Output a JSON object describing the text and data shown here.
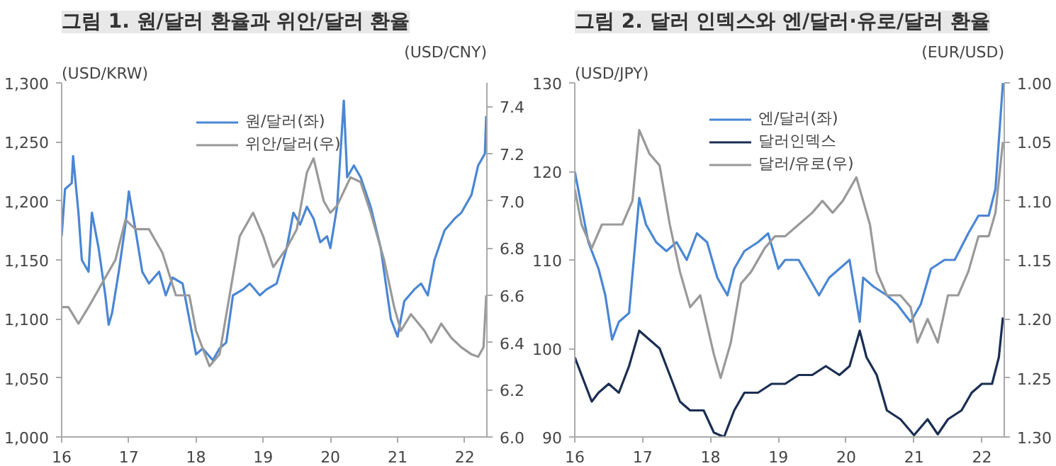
{
  "chart_data": [
    {
      "type": "line",
      "title": "그림 1. 원/달러 환율과 위안/달러 환율",
      "ylabel": "(USD/KRW)",
      "y2label": "(USD/CNY)",
      "legend": "top",
      "grid": false,
      "xlim": [
        2016,
        2022.33
      ],
      "xticks": [
        {
          "value": 2016,
          "label": "16"
        },
        {
          "value": 2017,
          "label": "17"
        },
        {
          "value": 2018,
          "label": "18"
        },
        {
          "value": 2019,
          "label": "19"
        },
        {
          "value": 2020,
          "label": "20"
        },
        {
          "value": 2021,
          "label": "21"
        },
        {
          "value": 2022,
          "label": "22"
        }
      ],
      "ylim": [
        1000,
        1300
      ],
      "yticks": [
        {
          "value": 1000,
          "label": "1,000"
        },
        {
          "value": 1050,
          "label": "1,050"
        },
        {
          "value": 1100,
          "label": "1,100"
        },
        {
          "value": 1150,
          "label": "1,150"
        },
        {
          "value": 1200,
          "label": "1,200"
        },
        {
          "value": 1250,
          "label": "1,250"
        },
        {
          "value": 1300,
          "label": "1,300"
        }
      ],
      "y2lim": [
        6.0,
        7.5
      ],
      "y2ticks": [
        {
          "value": 6.0,
          "label": "6.0"
        },
        {
          "value": 6.2,
          "label": "6.2"
        },
        {
          "value": 6.4,
          "label": "6.4"
        },
        {
          "value": 6.6,
          "label": "6.6"
        },
        {
          "value": 6.8,
          "label": "6.8"
        },
        {
          "value": 7.0,
          "label": "7.0"
        },
        {
          "value": 7.2,
          "label": "7.2"
        },
        {
          "value": 7.4,
          "label": "7.4"
        }
      ],
      "series": [
        {
          "name": "원/달러(좌)",
          "color": "#4a86d4",
          "x": [
            2016.0,
            2016.05,
            2016.15,
            2016.17,
            2016.25,
            2016.3,
            2016.4,
            2016.45,
            2016.55,
            2016.65,
            2016.7,
            2016.75,
            2016.85,
            2016.95,
            2017.0,
            2017.1,
            2017.2,
            2017.3,
            2017.45,
            2017.55,
            2017.65,
            2017.8,
            2017.9,
            2018.0,
            2018.1,
            2018.25,
            2018.35,
            2018.45,
            2018.55,
            2018.7,
            2018.8,
            2018.95,
            2019.05,
            2019.2,
            2019.35,
            2019.45,
            2019.55,
            2019.65,
            2019.75,
            2019.85,
            2019.95,
            2020.0,
            2020.1,
            2020.2,
            2020.25,
            2020.35,
            2020.45,
            2020.6,
            2020.75,
            2020.9,
            2021.0,
            2021.1,
            2021.25,
            2021.35,
            2021.45,
            2021.55,
            2021.7,
            2021.85,
            2021.95,
            2022.1,
            2022.2,
            2022.3,
            2022.32
          ],
          "values": [
            1170,
            1210,
            1215,
            1238,
            1190,
            1150,
            1140,
            1190,
            1160,
            1120,
            1095,
            1105,
            1140,
            1180,
            1208,
            1175,
            1140,
            1130,
            1140,
            1120,
            1135,
            1130,
            1100,
            1070,
            1075,
            1065,
            1075,
            1080,
            1120,
            1125,
            1130,
            1120,
            1125,
            1130,
            1160,
            1190,
            1180,
            1195,
            1185,
            1165,
            1170,
            1160,
            1195,
            1285,
            1220,
            1230,
            1220,
            1195,
            1160,
            1100,
            1085,
            1115,
            1125,
            1130,
            1120,
            1150,
            1175,
            1185,
            1190,
            1205,
            1230,
            1240,
            1272
          ]
        },
        {
          "name": "위안/달러(우)",
          "color": "#999999",
          "axis": "y2",
          "x": [
            2016.0,
            2016.1,
            2016.25,
            2016.4,
            2016.6,
            2016.8,
            2016.95,
            2017.1,
            2017.3,
            2017.5,
            2017.7,
            2017.9,
            2018.0,
            2018.2,
            2018.35,
            2018.5,
            2018.65,
            2018.85,
            2019.0,
            2019.15,
            2019.35,
            2019.5,
            2019.65,
            2019.75,
            2019.9,
            2020.0,
            2020.1,
            2020.3,
            2020.45,
            2020.6,
            2020.8,
            2020.95,
            2021.05,
            2021.2,
            2021.4,
            2021.5,
            2021.65,
            2021.8,
            2021.95,
            2022.1,
            2022.2,
            2022.28,
            2022.32
          ],
          "values": [
            6.55,
            6.55,
            6.48,
            6.55,
            6.65,
            6.75,
            6.92,
            6.88,
            6.88,
            6.78,
            6.6,
            6.6,
            6.45,
            6.3,
            6.35,
            6.6,
            6.85,
            6.95,
            6.85,
            6.72,
            6.8,
            6.88,
            7.12,
            7.18,
            7.0,
            6.95,
            6.98,
            7.1,
            7.08,
            6.95,
            6.75,
            6.55,
            6.45,
            6.52,
            6.45,
            6.4,
            6.48,
            6.42,
            6.38,
            6.35,
            6.34,
            6.38,
            6.6
          ]
        }
      ]
    },
    {
      "type": "line",
      "title": "그림 2. 달러 인덱스와 엔/달러·유로/달러 환율",
      "ylabel": "(USD/JPY)",
      "y2label": "(EUR/USD)",
      "legend": "top",
      "grid": false,
      "xlim": [
        2016,
        2022.33
      ],
      "xticks": [
        {
          "value": 2016,
          "label": "16"
        },
        {
          "value": 2017,
          "label": "17"
        },
        {
          "value": 2018,
          "label": "18"
        },
        {
          "value": 2019,
          "label": "19"
        },
        {
          "value": 2020,
          "label": "20"
        },
        {
          "value": 2021,
          "label": "21"
        },
        {
          "value": 2022,
          "label": "22"
        }
      ],
      "ylim": [
        90,
        130
      ],
      "yticks": [
        90,
        100,
        110,
        120,
        130
      ],
      "y2lim": [
        1.3,
        1.0
      ],
      "y2ticks": [
        {
          "value": 1.0,
          "label": "1.00"
        },
        {
          "value": 1.05,
          "label": "1.05"
        },
        {
          "value": 1.1,
          "label": "1.10"
        },
        {
          "value": 1.15,
          "label": "1.15"
        },
        {
          "value": 1.2,
          "label": "1.20"
        },
        {
          "value": 1.25,
          "label": "1.25"
        },
        {
          "value": 1.3,
          "label": "1.30"
        }
      ],
      "series": [
        {
          "name": "엔/달러(좌)",
          "color": "#4a86d4",
          "x": [
            2016.0,
            2016.1,
            2016.2,
            2016.35,
            2016.45,
            2016.55,
            2016.65,
            2016.8,
            2016.95,
            2017.05,
            2017.2,
            2017.35,
            2017.5,
            2017.65,
            2017.8,
            2017.95,
            2018.1,
            2018.25,
            2018.35,
            2018.5,
            2018.7,
            2018.85,
            2019.0,
            2019.1,
            2019.3,
            2019.45,
            2019.6,
            2019.75,
            2019.9,
            2020.05,
            2020.2,
            2020.25,
            2020.4,
            2020.6,
            2020.75,
            2020.95,
            2021.1,
            2021.25,
            2021.45,
            2021.6,
            2021.8,
            2021.95,
            2022.1,
            2022.2,
            2022.31
          ],
          "values": [
            120,
            116,
            112,
            109,
            106,
            101,
            103,
            104,
            117,
            114,
            112,
            111,
            112,
            110,
            113,
            112,
            108,
            106,
            109,
            111,
            112,
            113,
            109,
            110,
            110,
            108,
            106,
            108,
            109,
            110,
            103,
            108,
            107,
            106,
            105,
            103,
            105,
            109,
            110,
            110,
            113,
            115,
            115,
            118,
            130
          ]
        },
        {
          "name": "달러인덱스",
          "color": "#1a2e52",
          "x": [
            2016.0,
            2016.1,
            2016.25,
            2016.35,
            2016.5,
            2016.65,
            2016.8,
            2016.95,
            2017.1,
            2017.25,
            2017.4,
            2017.55,
            2017.7,
            2017.9,
            2018.05,
            2018.2,
            2018.35,
            2018.5,
            2018.7,
            2018.9,
            2019.1,
            2019.3,
            2019.5,
            2019.7,
            2019.9,
            2020.05,
            2020.2,
            2020.3,
            2020.45,
            2020.6,
            2020.8,
            2021.0,
            2021.2,
            2021.35,
            2021.5,
            2021.7,
            2021.85,
            2022.0,
            2022.15,
            2022.25,
            2022.31
          ],
          "values": [
            99,
            97,
            94,
            95,
            96,
            95,
            98,
            102,
            101,
            100,
            97,
            94,
            93,
            93,
            90.5,
            90,
            93,
            95,
            95,
            96,
            96,
            97,
            97,
            98,
            97,
            98,
            102,
            99,
            97,
            93,
            92,
            90.2,
            92,
            90.3,
            92,
            93,
            95,
            96,
            96,
            99,
            103.5
          ]
        },
        {
          "name": "달러/유로(우)",
          "color": "#999999",
          "axis": "y2",
          "x": [
            2016.0,
            2016.1,
            2016.25,
            2016.4,
            2016.55,
            2016.7,
            2016.85,
            2016.95,
            2017.1,
            2017.25,
            2017.4,
            2017.55,
            2017.7,
            2017.85,
            2018.05,
            2018.15,
            2018.3,
            2018.45,
            2018.6,
            2018.8,
            2018.95,
            2019.1,
            2019.3,
            2019.5,
            2019.65,
            2019.8,
            2019.95,
            2020.05,
            2020.15,
            2020.25,
            2020.35,
            2020.45,
            2020.6,
            2020.8,
            2020.95,
            2021.05,
            2021.2,
            2021.35,
            2021.5,
            2021.65,
            2021.8,
            2021.95,
            2022.1,
            2022.2,
            2022.31
          ],
          "values": [
            1.09,
            1.12,
            1.14,
            1.12,
            1.12,
            1.12,
            1.1,
            1.04,
            1.06,
            1.07,
            1.12,
            1.16,
            1.19,
            1.18,
            1.23,
            1.25,
            1.22,
            1.17,
            1.16,
            1.14,
            1.13,
            1.13,
            1.12,
            1.11,
            1.1,
            1.11,
            1.1,
            1.09,
            1.08,
            1.1,
            1.12,
            1.16,
            1.18,
            1.18,
            1.19,
            1.22,
            1.2,
            1.22,
            1.18,
            1.18,
            1.16,
            1.13,
            1.13,
            1.11,
            1.05
          ]
        }
      ]
    }
  ]
}
